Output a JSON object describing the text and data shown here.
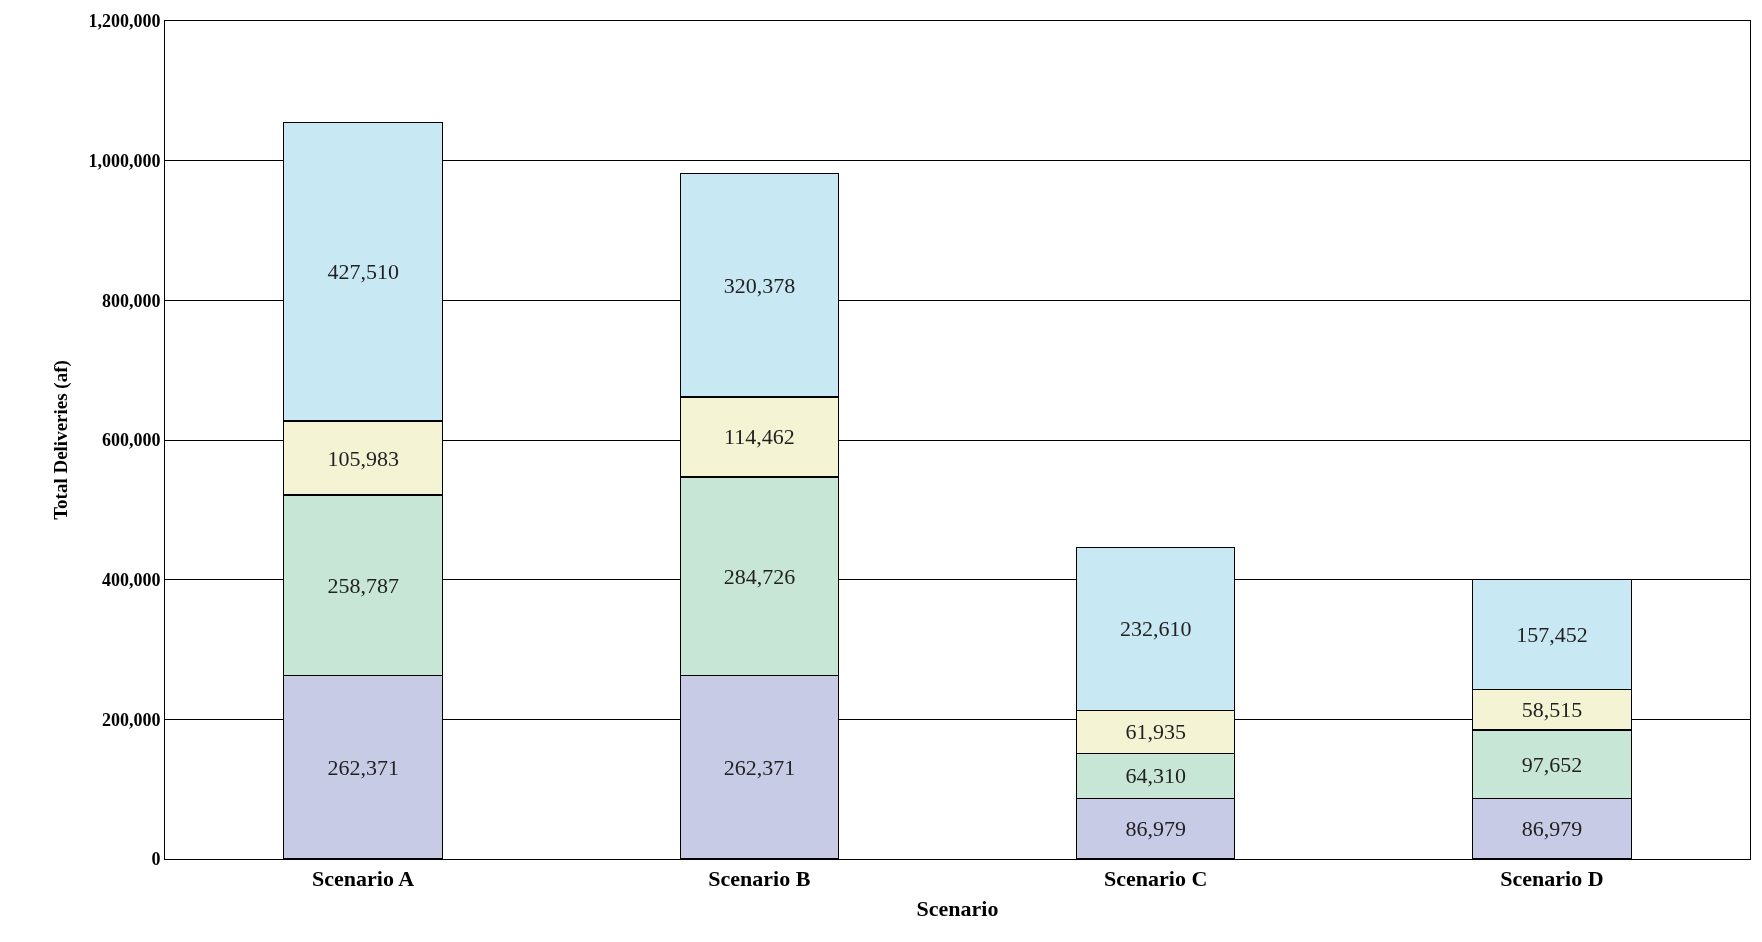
{
  "chart_data": {
    "type": "bar",
    "stacked": true,
    "xlabel": "Scenario",
    "ylabel": "Total Deliveries (af)",
    "categories": [
      "Scenario A",
      "Scenario B",
      "Scenario C",
      "Scenario D"
    ],
    "series": [
      {
        "color": "#c8cbe6",
        "values": [
          262371,
          262371,
          86979,
          86979
        ],
        "value_labels": [
          "262,371",
          "262,371",
          "86,979",
          "86,979"
        ]
      },
      {
        "color": "#c8e6d5",
        "values": [
          258787,
          284726,
          64310,
          97652
        ],
        "value_labels": [
          "258,787",
          "284,726",
          "64,310",
          "97,652"
        ]
      },
      {
        "color": "#f4f4d4",
        "values": [
          105983,
          114462,
          61935,
          58515
        ],
        "value_labels": [
          "105,983",
          "114,462",
          "61,935",
          "58,515"
        ]
      },
      {
        "color": "#c8e8f3",
        "values": [
          427510,
          320378,
          232610,
          157452
        ],
        "value_labels": [
          "427,510",
          "320,378",
          "232,610",
          "157,452"
        ]
      }
    ],
    "ylim": [
      0,
      1200000
    ],
    "yticks": [
      {
        "value": 0,
        "label": "0"
      },
      {
        "value": 200000,
        "label": "200,000"
      },
      {
        "value": 400000,
        "label": "400,000"
      },
      {
        "value": 600000,
        "label": "600,000"
      },
      {
        "value": 800000,
        "label": "800,000"
      },
      {
        "value": 1000000,
        "label": "1,000,000"
      },
      {
        "value": 1200000,
        "label": "1,200,000"
      }
    ],
    "grid": "y"
  }
}
